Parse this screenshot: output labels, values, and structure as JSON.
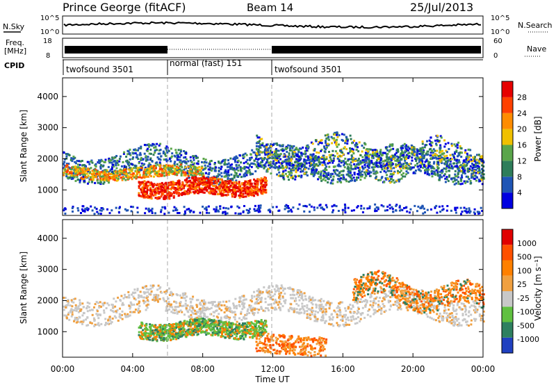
{
  "header": {
    "station": "Prince George (fitACF)",
    "beam": "Beam 14",
    "date": "25/Jul/2013"
  },
  "chart_data": [
    {
      "name": "noise-panel",
      "type": "line",
      "left_label": "N.Sky",
      "right_label": "N.Search",
      "left_ticks": [
        "10^5",
        "10^0"
      ],
      "right_ticks": [
        "10^5",
        "10^0"
      ]
    },
    {
      "name": "frequency-nave-panel",
      "type": "line",
      "left_label_line1": "Freq.",
      "left_label_line2": "[MHz]",
      "right_label": "Nave",
      "left_ticks": [
        "18",
        "8"
      ],
      "right_ticks": [
        "60",
        "0"
      ]
    },
    {
      "name": "cpid-panel",
      "type": "table",
      "label": "CPID",
      "segments": [
        {
          "label": "twofsound 3501",
          "start_hour": 0,
          "end_hour": 6
        },
        {
          "label": "normal (fast) 151",
          "start_hour": 6,
          "end_hour": 12
        },
        {
          "label": "twofsound 3501",
          "start_hour": 12,
          "end_hour": 24
        }
      ]
    },
    {
      "name": "power-panel",
      "type": "heatmap",
      "ylabel": "Slant Range [km]",
      "yticks": [
        1000,
        2000,
        3000,
        4000
      ],
      "ylim": [
        180,
        4600
      ],
      "colorbar_label": "Power [dB]",
      "colorbar_ticks": [
        "28",
        "24",
        "20",
        "16",
        "12",
        "8",
        "4"
      ],
      "colors": [
        "#0000e0",
        "#1f55b5",
        "#2e7d5a",
        "#5aa54a",
        "#f0c000",
        "#ff8c00",
        "#ff4000",
        "#e60000"
      ]
    },
    {
      "name": "velocity-panel",
      "type": "heatmap",
      "ylabel": "Slant Range [km]",
      "yticks": [
        1000,
        2000,
        3000,
        4000
      ],
      "ylim": [
        180,
        4600
      ],
      "colorbar_label": "Velocity [m s⁻¹]",
      "colorbar_ticks": [
        "1000",
        "500",
        "100",
        "25",
        "-25",
        "-100",
        "-500",
        "-1000"
      ],
      "colors": [
        "#2040c0",
        "#2e8060",
        "#60c040",
        "#c8c8c8",
        "#f0a040",
        "#ff8000",
        "#ff5000",
        "#e00000"
      ]
    }
  ],
  "time_axis": {
    "label": "Time UT",
    "ticks": [
      "00:00",
      "04:00",
      "08:00",
      "12:00",
      "16:00",
      "20:00",
      "00:00"
    ],
    "xlim_hours": [
      0,
      24
    ]
  }
}
